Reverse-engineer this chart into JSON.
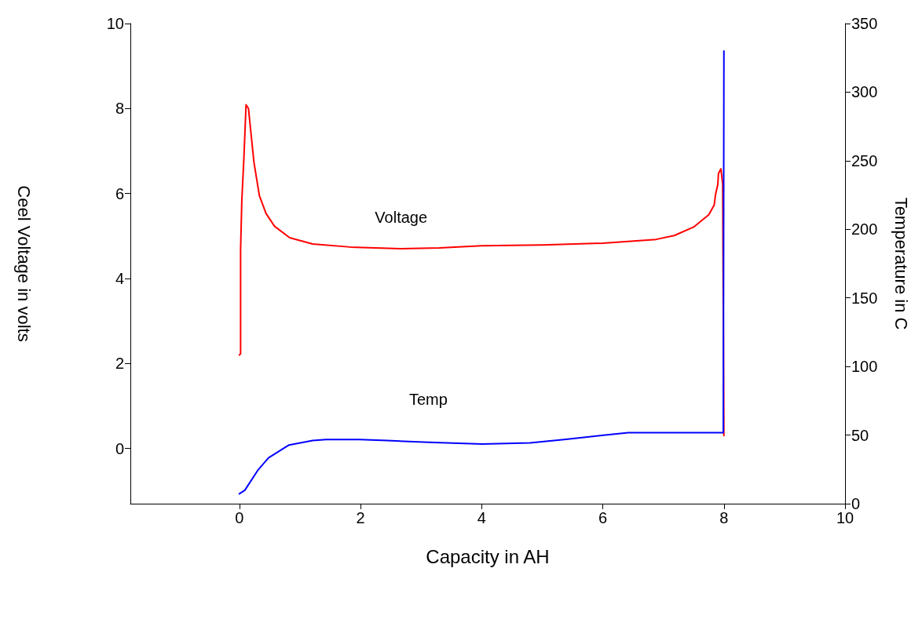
{
  "chart_data": {
    "type": "line",
    "xlabel": "Capacity in AH",
    "ylabel": "Ceel Voltage in volts",
    "y2label": "Temperature in C",
    "xlim": [
      -1.8,
      10
    ],
    "xticks": [
      0,
      2,
      4,
      6,
      8,
      10
    ],
    "ylim": [
      -1.3,
      10
    ],
    "yticks": [
      0,
      2,
      4,
      6,
      8,
      10
    ],
    "y2lim": [
      0,
      350
    ],
    "y2ticks": [
      0,
      50,
      100,
      150,
      200,
      250,
      300,
      350
    ],
    "grid": false,
    "legend": false,
    "marker": "none",
    "line_style": "solid",
    "series": [
      {
        "name": "Voltage",
        "color": "#ff0000",
        "x": [
          0.0,
          0.02,
          0.02,
          0.04,
          0.075,
          0.11,
          0.15,
          0.24,
          0.33,
          0.44,
          0.58,
          0.83,
          1.21,
          1.83,
          2.67,
          3.3,
          4.0,
          5.0,
          6.0,
          6.88,
          7.18,
          7.5,
          7.75,
          7.84,
          7.86,
          7.9,
          7.91,
          7.95,
          7.98,
          8.0
        ],
        "values": [
          2.2,
          2.23,
          4.68,
          5.83,
          6.85,
          8.09,
          8.0,
          6.74,
          5.95,
          5.53,
          5.23,
          4.96,
          4.81,
          4.74,
          4.7,
          4.72,
          4.77,
          4.79,
          4.83,
          4.92,
          5.01,
          5.21,
          5.5,
          5.73,
          5.96,
          6.22,
          6.47,
          6.58,
          6.22,
          0.3
        ]
      },
      {
        "name": "Temp",
        "color": "#0000ff",
        "axis": "y2",
        "x": [
          0.0,
          0.09,
          0.31,
          0.48,
          0.82,
          1.21,
          1.43,
          1.99,
          2.44,
          3.12,
          4.01,
          4.8,
          5.36,
          5.98,
          6.42,
          7.99,
          8.0
        ],
        "values": [
          7.2,
          9.8,
          24.7,
          33.4,
          42.8,
          46,
          46.8,
          46.8,
          46,
          44.8,
          43.5,
          44.3,
          46.8,
          49.7,
          51.7,
          51.7,
          330
        ]
      }
    ]
  }
}
